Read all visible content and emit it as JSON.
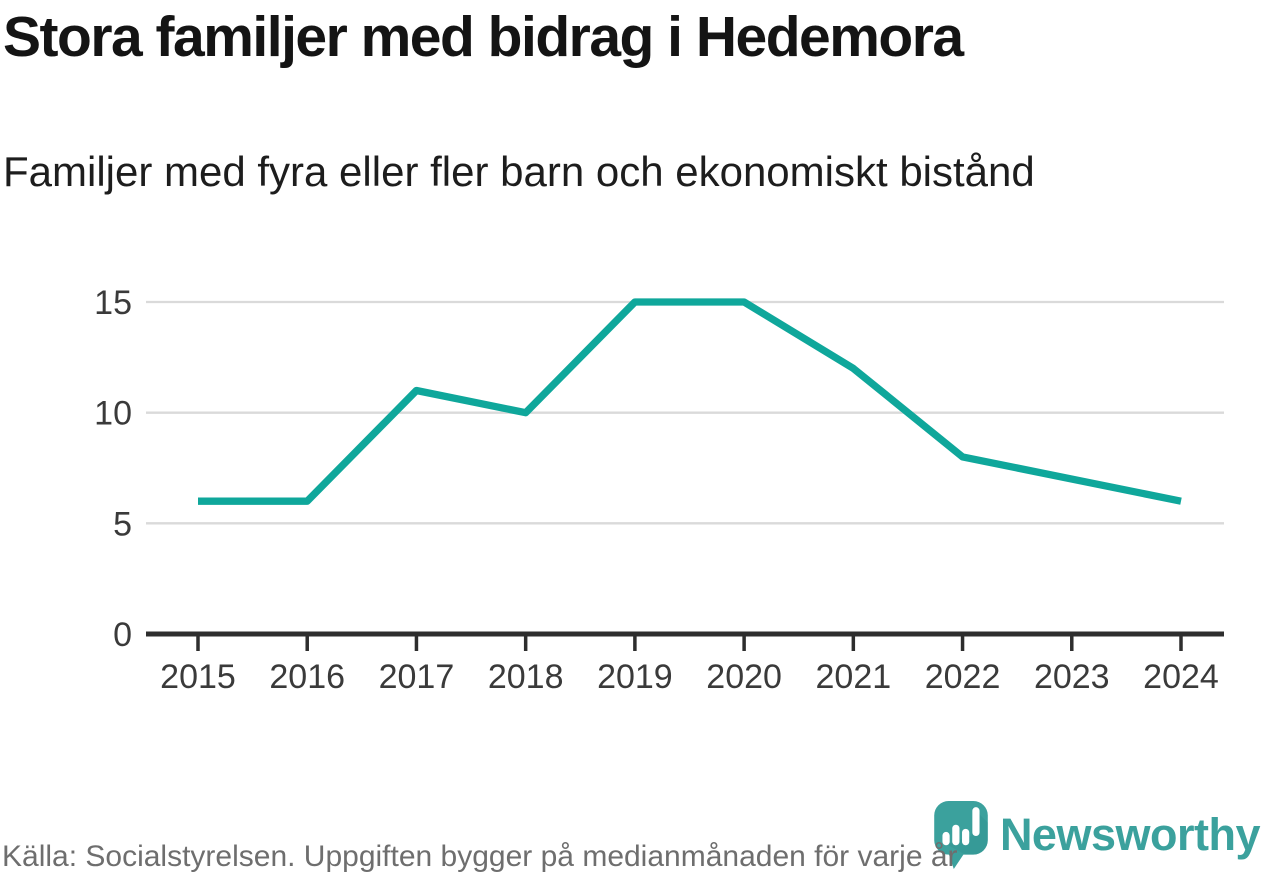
{
  "header": {
    "title": "Stora familjer med bidrag i Hedemora",
    "subtitle": "Familjer med fyra eller fler barn och ekonomiskt bistånd"
  },
  "chart_data": {
    "type": "line",
    "title": "Stora familjer med bidrag i Hedemora",
    "subtitle": "Familjer med fyra eller fler barn och ekonomiskt bistånd",
    "categories": [
      "2015",
      "2016",
      "2017",
      "2018",
      "2019",
      "2020",
      "2021",
      "2022",
      "2023",
      "2024"
    ],
    "values": [
      6,
      6,
      11,
      10,
      15,
      15,
      12,
      8,
      7,
      6
    ],
    "xlabel": "",
    "ylabel": "",
    "ylim": [
      0,
      15
    ],
    "yticks": [
      0,
      5,
      10,
      15
    ],
    "grid": "horizontal",
    "legend": "none",
    "line_color": "#0fa79b"
  },
  "footer": {
    "source": "Källa: Socialstyrelsen. Uppgiften bygger på medianmånaden för varje år",
    "brand_name": "Newsworthy"
  },
  "icons": {
    "logo": "newsworthy-speech-bubble-bar-chart-icon"
  },
  "colors": {
    "line": "#0fa79b",
    "brand_teal": "#3ba19d",
    "brand_teal_dark": "#32908c",
    "grid": "#dadada",
    "axis": "#2e2e2e",
    "axis_text": "#3a3a3a",
    "title_text": "#141414",
    "muted_text": "#6e6e6e",
    "background": "#ffffff"
  }
}
